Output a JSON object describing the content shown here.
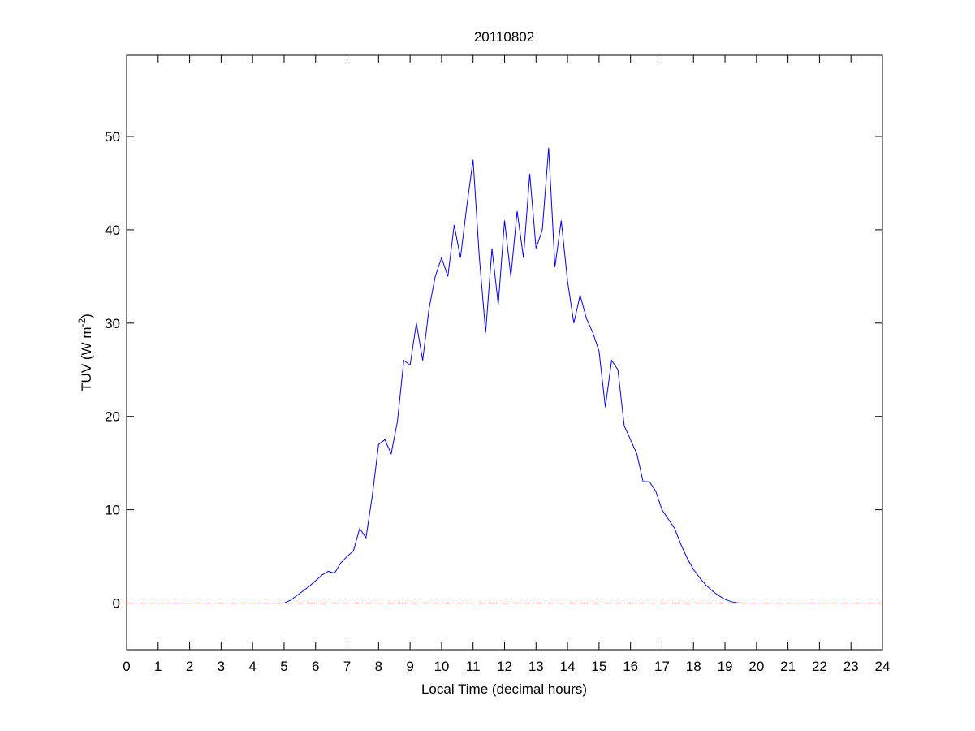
{
  "chart_data": {
    "type": "line",
    "title": "20110802",
    "xlabel": "Local Time (decimal hours)",
    "ylabel": [
      "TUV (W m",
      "-2",
      ")"
    ],
    "x": [
      0,
      5.0,
      5.2,
      5.4,
      5.6,
      5.8,
      6.0,
      6.2,
      6.4,
      6.6,
      6.8,
      7.0,
      7.2,
      7.4,
      7.6,
      7.8,
      8.0,
      8.2,
      8.4,
      8.6,
      8.8,
      9.0,
      9.2,
      9.4,
      9.6,
      9.8,
      10.0,
      10.2,
      10.4,
      10.6,
      10.8,
      11.0,
      11.2,
      11.4,
      11.6,
      11.8,
      12.0,
      12.2,
      12.4,
      12.6,
      12.8,
      13.0,
      13.2,
      13.4,
      13.6,
      13.8,
      14.0,
      14.2,
      14.4,
      14.6,
      14.8,
      15.0,
      15.2,
      15.4,
      15.6,
      15.8,
      16.0,
      16.2,
      16.4,
      16.6,
      16.8,
      17.0,
      17.2,
      17.4,
      17.6,
      17.8,
      18.0,
      18.2,
      18.4,
      18.6,
      18.8,
      19.0,
      19.2,
      19.4,
      19.6,
      24
    ],
    "series": [
      {
        "color": "#0000ff",
        "values": [
          0,
          0,
          0.3,
          0.8,
          1.3,
          1.8,
          2.4,
          3.0,
          3.4,
          3.2,
          4.3,
          5.0,
          5.6,
          8.0,
          7.0,
          11.5,
          17.0,
          17.5,
          16.0,
          19.5,
          26.0,
          25.5,
          30.0,
          26.0,
          31.5,
          35.0,
          37.0,
          35.0,
          40.5,
          37.0,
          42.5,
          47.5,
          37.0,
          29.0,
          38.0,
          32.0,
          41.0,
          35.0,
          42.0,
          37.0,
          46.0,
          38.0,
          40.0,
          48.8,
          36.0,
          41.0,
          34.5,
          30.0,
          33.0,
          30.5,
          29.0,
          27.0,
          21.0,
          26.0,
          25.0,
          19.0,
          17.5,
          16.0,
          13.0,
          13.0,
          12.0,
          10.0,
          9.0,
          8.0,
          6.3,
          4.8,
          3.6,
          2.7,
          1.9,
          1.3,
          0.8,
          0.4,
          0.15,
          0.03,
          0,
          0
        ]
      }
    ],
    "reference_line": {
      "value": 0,
      "color": "#ff0000",
      "dashed": true
    },
    "xlim": [
      0,
      24
    ],
    "xticks": [
      0,
      1,
      2,
      3,
      4,
      5,
      6,
      7,
      8,
      9,
      10,
      11,
      12,
      13,
      14,
      15,
      16,
      17,
      18,
      19,
      20,
      21,
      22,
      23,
      24
    ],
    "ylim": [
      -5,
      58.7
    ],
    "yticks": [
      0,
      10,
      20,
      30,
      40,
      50
    ],
    "grid": false
  }
}
